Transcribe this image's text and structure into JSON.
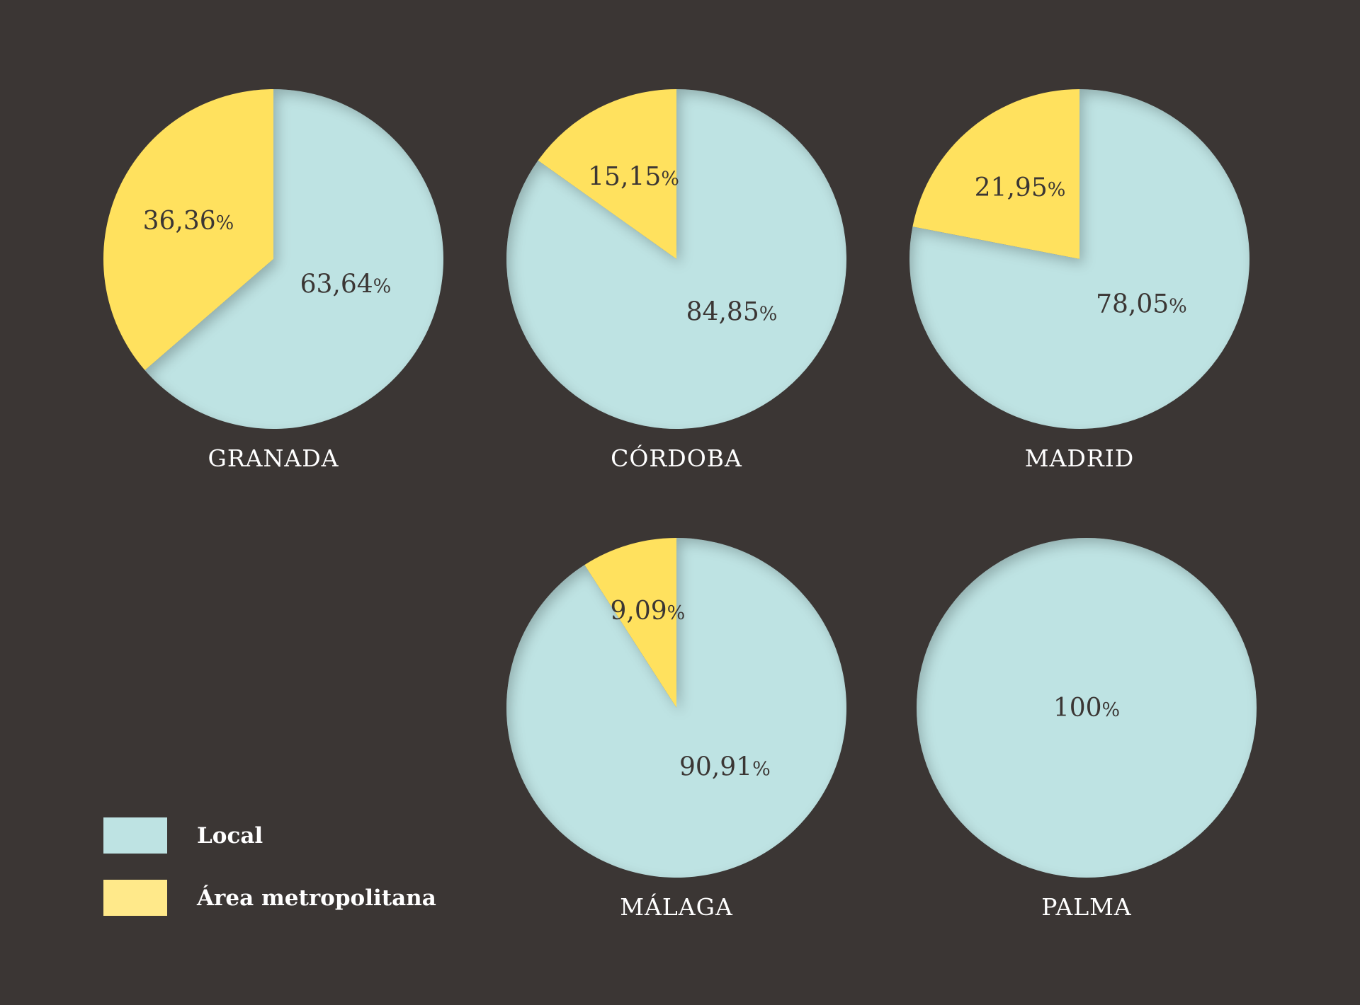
{
  "chart_data": {
    "type": "pie",
    "series_names": [
      "Local",
      "Área metropolitana"
    ],
    "colors": {
      "background": "#3b3634",
      "local": "#bee3e3",
      "metro": "#ffe15e",
      "metro_legend": "#ffe98a",
      "label_dark": "#3b3634",
      "label_light": "#ffffff"
    },
    "pies": [
      {
        "city": "GRANADA",
        "local": 63.64,
        "metro": 36.36,
        "local_label": "63,64",
        "metro_label": "36,36"
      },
      {
        "city": "CÓRDOBA",
        "local": 84.85,
        "metro": 15.15,
        "local_label": "84,85",
        "metro_label": "15,15"
      },
      {
        "city": "MADRID",
        "local": 78.05,
        "metro": 21.95,
        "local_label": "78,05",
        "metro_label": "21,95"
      },
      {
        "city": "MÁLAGA",
        "local": 90.91,
        "metro": 9.09,
        "local_label": "90,91",
        "metro_label": "9,09"
      },
      {
        "city": "PALMA",
        "local": 100,
        "metro": 0,
        "local_label": "100",
        "metro_label": ""
      }
    ],
    "legend": [
      {
        "name": "Local",
        "color_key": "local"
      },
      {
        "name": "Área metropolitana",
        "color_key": "metro_legend"
      }
    ],
    "percent_sign": "%"
  }
}
